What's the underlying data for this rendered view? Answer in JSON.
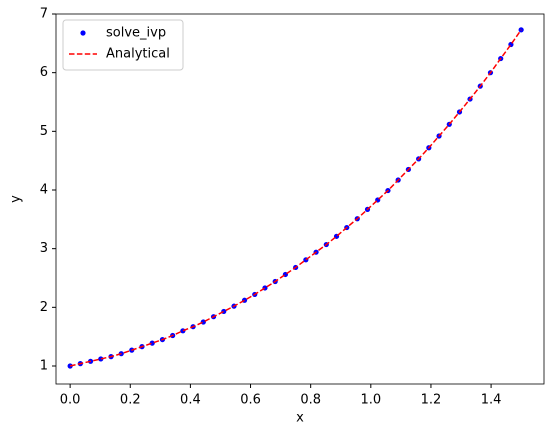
{
  "chart_data": {
    "type": "line",
    "xlabel": "x",
    "ylabel": "y",
    "x": [
      0,
      0.034,
      0.068,
      0.102,
      0.136,
      0.17,
      0.205,
      0.239,
      0.273,
      0.307,
      0.341,
      0.375,
      0.409,
      0.443,
      0.477,
      0.511,
      0.545,
      0.58,
      0.614,
      0.648,
      0.682,
      0.716,
      0.75,
      0.784,
      0.818,
      0.852,
      0.886,
      0.92,
      0.955,
      0.989,
      1.023,
      1.057,
      1.091,
      1.125,
      1.159,
      1.193,
      1.227,
      1.261,
      1.295,
      1.33,
      1.364,
      1.398,
      1.432,
      1.466,
      1.5
    ],
    "series": [
      {
        "name": "solve_ivp",
        "color": "#0000ff",
        "style": "points",
        "values": [
          1.0,
          1.04,
          1.08,
          1.12,
          1.16,
          1.21,
          1.27,
          1.33,
          1.39,
          1.45,
          1.52,
          1.6,
          1.67,
          1.75,
          1.84,
          1.93,
          2.02,
          2.12,
          2.22,
          2.33,
          2.44,
          2.56,
          2.68,
          2.81,
          2.94,
          3.07,
          3.21,
          3.36,
          3.51,
          3.67,
          3.83,
          3.99,
          4.17,
          4.35,
          4.53,
          4.72,
          4.92,
          5.12,
          5.33,
          5.55,
          5.77,
          6.0,
          6.24,
          6.48,
          6.73
        ]
      },
      {
        "name": "Analytical",
        "color": "#ff0000",
        "style": "dashed",
        "values": [
          1.0,
          1.04,
          1.08,
          1.12,
          1.16,
          1.21,
          1.27,
          1.33,
          1.39,
          1.45,
          1.52,
          1.6,
          1.67,
          1.75,
          1.84,
          1.93,
          2.02,
          2.12,
          2.22,
          2.33,
          2.44,
          2.56,
          2.68,
          2.81,
          2.94,
          3.07,
          3.21,
          3.36,
          3.51,
          3.67,
          3.83,
          3.99,
          4.17,
          4.35,
          4.53,
          4.72,
          4.92,
          5.12,
          5.33,
          5.55,
          5.77,
          6.0,
          6.24,
          6.48,
          6.73
        ]
      }
    ],
    "xlim": [
      -0.047,
      1.576
    ],
    "xticks": [
      {
        "value": 0,
        "label": "0.0"
      },
      {
        "value": 0.2,
        "label": "0.2"
      },
      {
        "value": 0.4,
        "label": "0.4"
      },
      {
        "value": 0.6,
        "label": "0.6"
      },
      {
        "value": 0.8,
        "label": "0.8"
      },
      {
        "value": 1,
        "label": "1.0"
      },
      {
        "value": 1.2,
        "label": "1.2"
      },
      {
        "value": 1.4,
        "label": "1.4"
      }
    ],
    "ylim": [
      0.693,
      7.0
    ],
    "yticks": [
      1,
      2,
      3,
      4,
      5,
      6,
      7
    ],
    "legend": "upper left",
    "grid": false
  }
}
